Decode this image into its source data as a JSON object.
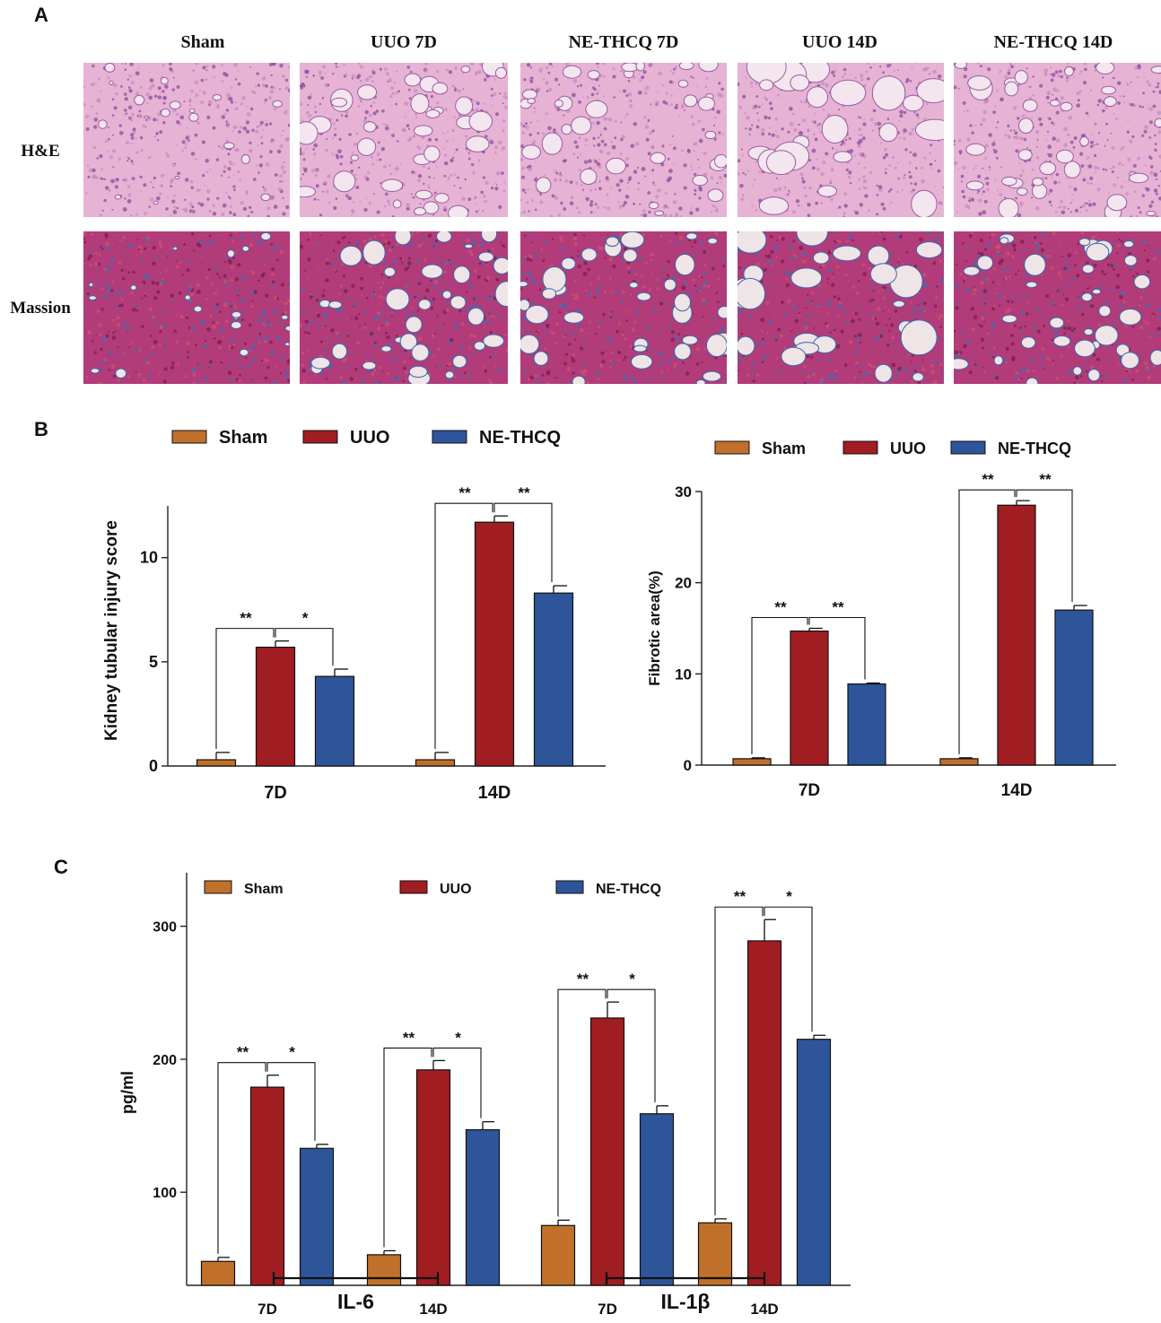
{
  "panel_a": {
    "letter": "A",
    "columns": [
      "Sham",
      "UUO 7D",
      "NE-THCQ 7D",
      "UUO 14D",
      "NE-THCQ 14D"
    ],
    "rows": [
      "H&E",
      "Massion"
    ]
  },
  "colors": {
    "sham": "#c0702b",
    "uuo": "#a01d22",
    "nethcq": "#2e5599",
    "he_background": "#e6b3d4",
    "masson_background": "#b23b7a"
  },
  "chart_data": [
    {
      "panel": "B",
      "type": "bar",
      "categories": [
        "7D",
        "14D"
      ],
      "series": [
        {
          "name": "Sham",
          "values": [
            0.3,
            0.3
          ],
          "errors": [
            0.35,
            0.35
          ]
        },
        {
          "name": "UUO",
          "values": [
            5.7,
            11.7
          ],
          "errors": [
            0.3,
            0.3
          ]
        },
        {
          "name": "NE-THCQ",
          "values": [
            4.3,
            8.3
          ],
          "errors": [
            0.35,
            0.35
          ]
        }
      ],
      "ylabel": "Kidney tubular injury score",
      "ylim": [
        0,
        13
      ],
      "yticks": [
        0,
        5,
        10
      ],
      "legend": "top",
      "significance": [
        {
          "cat": 0,
          "from": 0,
          "to": 1,
          "label": "**"
        },
        {
          "cat": 0,
          "from": 1,
          "to": 2,
          "label": "*"
        },
        {
          "cat": 1,
          "from": 0,
          "to": 1,
          "label": "**"
        },
        {
          "cat": 1,
          "from": 1,
          "to": 2,
          "label": "**"
        }
      ]
    },
    {
      "panel": "B",
      "type": "bar",
      "categories": [
        "7D",
        "14D"
      ],
      "series": [
        {
          "name": "Sham",
          "values": [
            0.7,
            0.7
          ],
          "errors": [
            0.1,
            0.1
          ]
        },
        {
          "name": "UUO",
          "values": [
            14.7,
            28.5
          ],
          "errors": [
            0.3,
            0.5
          ]
        },
        {
          "name": "NE-THCQ",
          "values": [
            8.9,
            17.0
          ],
          "errors": [
            0.1,
            0.5
          ]
        }
      ],
      "ylabel": "Fibrotic area(%)",
      "ylim": [
        0,
        30
      ],
      "yticks": [
        0,
        10,
        20,
        30
      ],
      "legend": "top",
      "significance": [
        {
          "cat": 0,
          "from": 0,
          "to": 1,
          "label": "**"
        },
        {
          "cat": 0,
          "from": 1,
          "to": 2,
          "label": "**"
        },
        {
          "cat": 1,
          "from": 0,
          "to": 1,
          "label": "**"
        },
        {
          "cat": 1,
          "from": 1,
          "to": 2,
          "label": "**"
        }
      ]
    },
    {
      "panel": "C",
      "type": "bar",
      "categories": [
        "7D",
        "14D",
        "7D",
        "14D"
      ],
      "groups": [
        {
          "label": "IL-6",
          "categories": [
            0,
            1
          ]
        },
        {
          "label": "IL-1β",
          "categories": [
            2,
            3
          ]
        }
      ],
      "series": [
        {
          "name": "Sham",
          "values": [
            48,
            53,
            75,
            77
          ],
          "errors": [
            3,
            3,
            4,
            3
          ]
        },
        {
          "name": "UUO",
          "values": [
            179,
            192,
            231,
            289
          ],
          "errors": [
            9,
            7,
            12,
            16
          ]
        },
        {
          "name": "NE-THCQ",
          "values": [
            133,
            147,
            159,
            215
          ],
          "errors": [
            3,
            6,
            6,
            3
          ]
        }
      ],
      "ylabel": "pg/ml",
      "ylim": [
        30,
        320
      ],
      "yticks": [
        100,
        200,
        300
      ],
      "legend": "top",
      "significance": [
        {
          "cat": 0,
          "from": 0,
          "to": 1,
          "label": "**"
        },
        {
          "cat": 0,
          "from": 1,
          "to": 2,
          "label": "*"
        },
        {
          "cat": 1,
          "from": 0,
          "to": 1,
          "label": "**"
        },
        {
          "cat": 1,
          "from": 1,
          "to": 2,
          "label": "*"
        },
        {
          "cat": 2,
          "from": 0,
          "to": 1,
          "label": "**"
        },
        {
          "cat": 2,
          "from": 1,
          "to": 2,
          "label": "*"
        },
        {
          "cat": 3,
          "from": 0,
          "to": 1,
          "label": "**"
        },
        {
          "cat": 3,
          "from": 1,
          "to": 2,
          "label": "*"
        }
      ]
    }
  ],
  "panel_b_letter": "B",
  "panel_c_letter": "C"
}
